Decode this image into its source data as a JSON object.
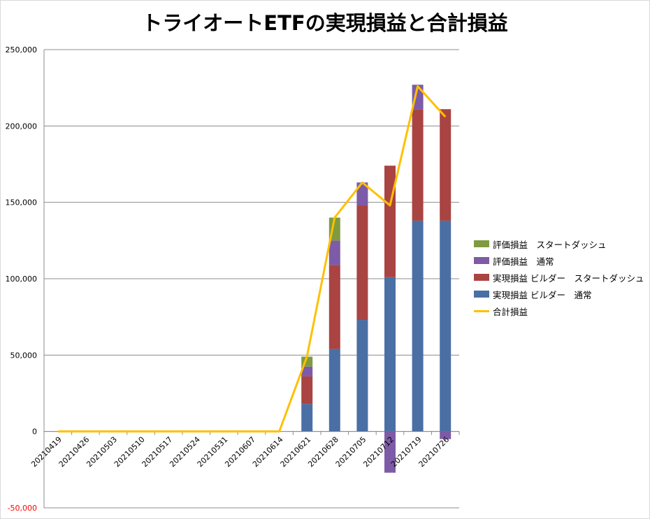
{
  "chart_data": {
    "type": "bar",
    "title": "トライオートETFの実現損益と合計損益",
    "categories": [
      "20210419",
      "20210426",
      "20210503",
      "20210510",
      "20210517",
      "20210524",
      "20210531",
      "20210607",
      "20210614",
      "20210621",
      "20210628",
      "20210705",
      "20210712",
      "20210719",
      "20210726"
    ],
    "ylim": [
      -50000,
      250000
    ],
    "yticks": [
      {
        "value": -50000,
        "label": "-50,000"
      },
      {
        "value": 0,
        "label": "0"
      },
      {
        "value": 50000,
        "label": "50,000"
      },
      {
        "value": 100000,
        "label": "100,000"
      },
      {
        "value": 150000,
        "label": "150,000"
      },
      {
        "value": 200000,
        "label": "200,000"
      },
      {
        "value": 250000,
        "label": "250,000"
      }
    ],
    "negative_label_color": "#ff0000",
    "grid": true,
    "legend_position": "right",
    "stacked": true,
    "series": [
      {
        "name": "実現損益 ビルダー　通常",
        "type": "bar",
        "color": "#4a6fa5",
        "values": [
          0,
          0,
          0,
          0,
          0,
          0,
          0,
          0,
          0,
          18000,
          54000,
          73000,
          101000,
          138000,
          138000
        ]
      },
      {
        "name": "実現損益 ビルダー　スタートダッシュ",
        "type": "bar",
        "color": "#a94442",
        "values": [
          0,
          0,
          0,
          0,
          0,
          0,
          0,
          0,
          0,
          18000,
          55000,
          75000,
          73000,
          73000,
          73000
        ]
      },
      {
        "name": "評価損益　通常",
        "type": "bar",
        "color": "#7d5ba6",
        "values": [
          0,
          0,
          0,
          0,
          0,
          0,
          0,
          0,
          0,
          6500,
          16000,
          15000,
          -27000,
          16000,
          -5000
        ]
      },
      {
        "name": "評価損益　スタートダッシュ",
        "type": "bar",
        "color": "#7e9b41",
        "values": [
          0,
          0,
          0,
          0,
          0,
          0,
          0,
          0,
          0,
          6500,
          15000,
          0,
          0,
          0,
          0
        ]
      },
      {
        "name": "合計損益",
        "type": "line",
        "color": "#ffc000",
        "values": [
          0,
          0,
          0,
          0,
          0,
          0,
          0,
          0,
          0,
          49000,
          140000,
          163000,
          148000,
          226000,
          206000
        ]
      }
    ],
    "legend_order": [
      "評価損益　スタートダッシュ",
      "評価損益　通常",
      "実現損益 ビルダー　スタートダッシュ",
      "実現損益 ビルダー　通常",
      "合計損益"
    ]
  }
}
